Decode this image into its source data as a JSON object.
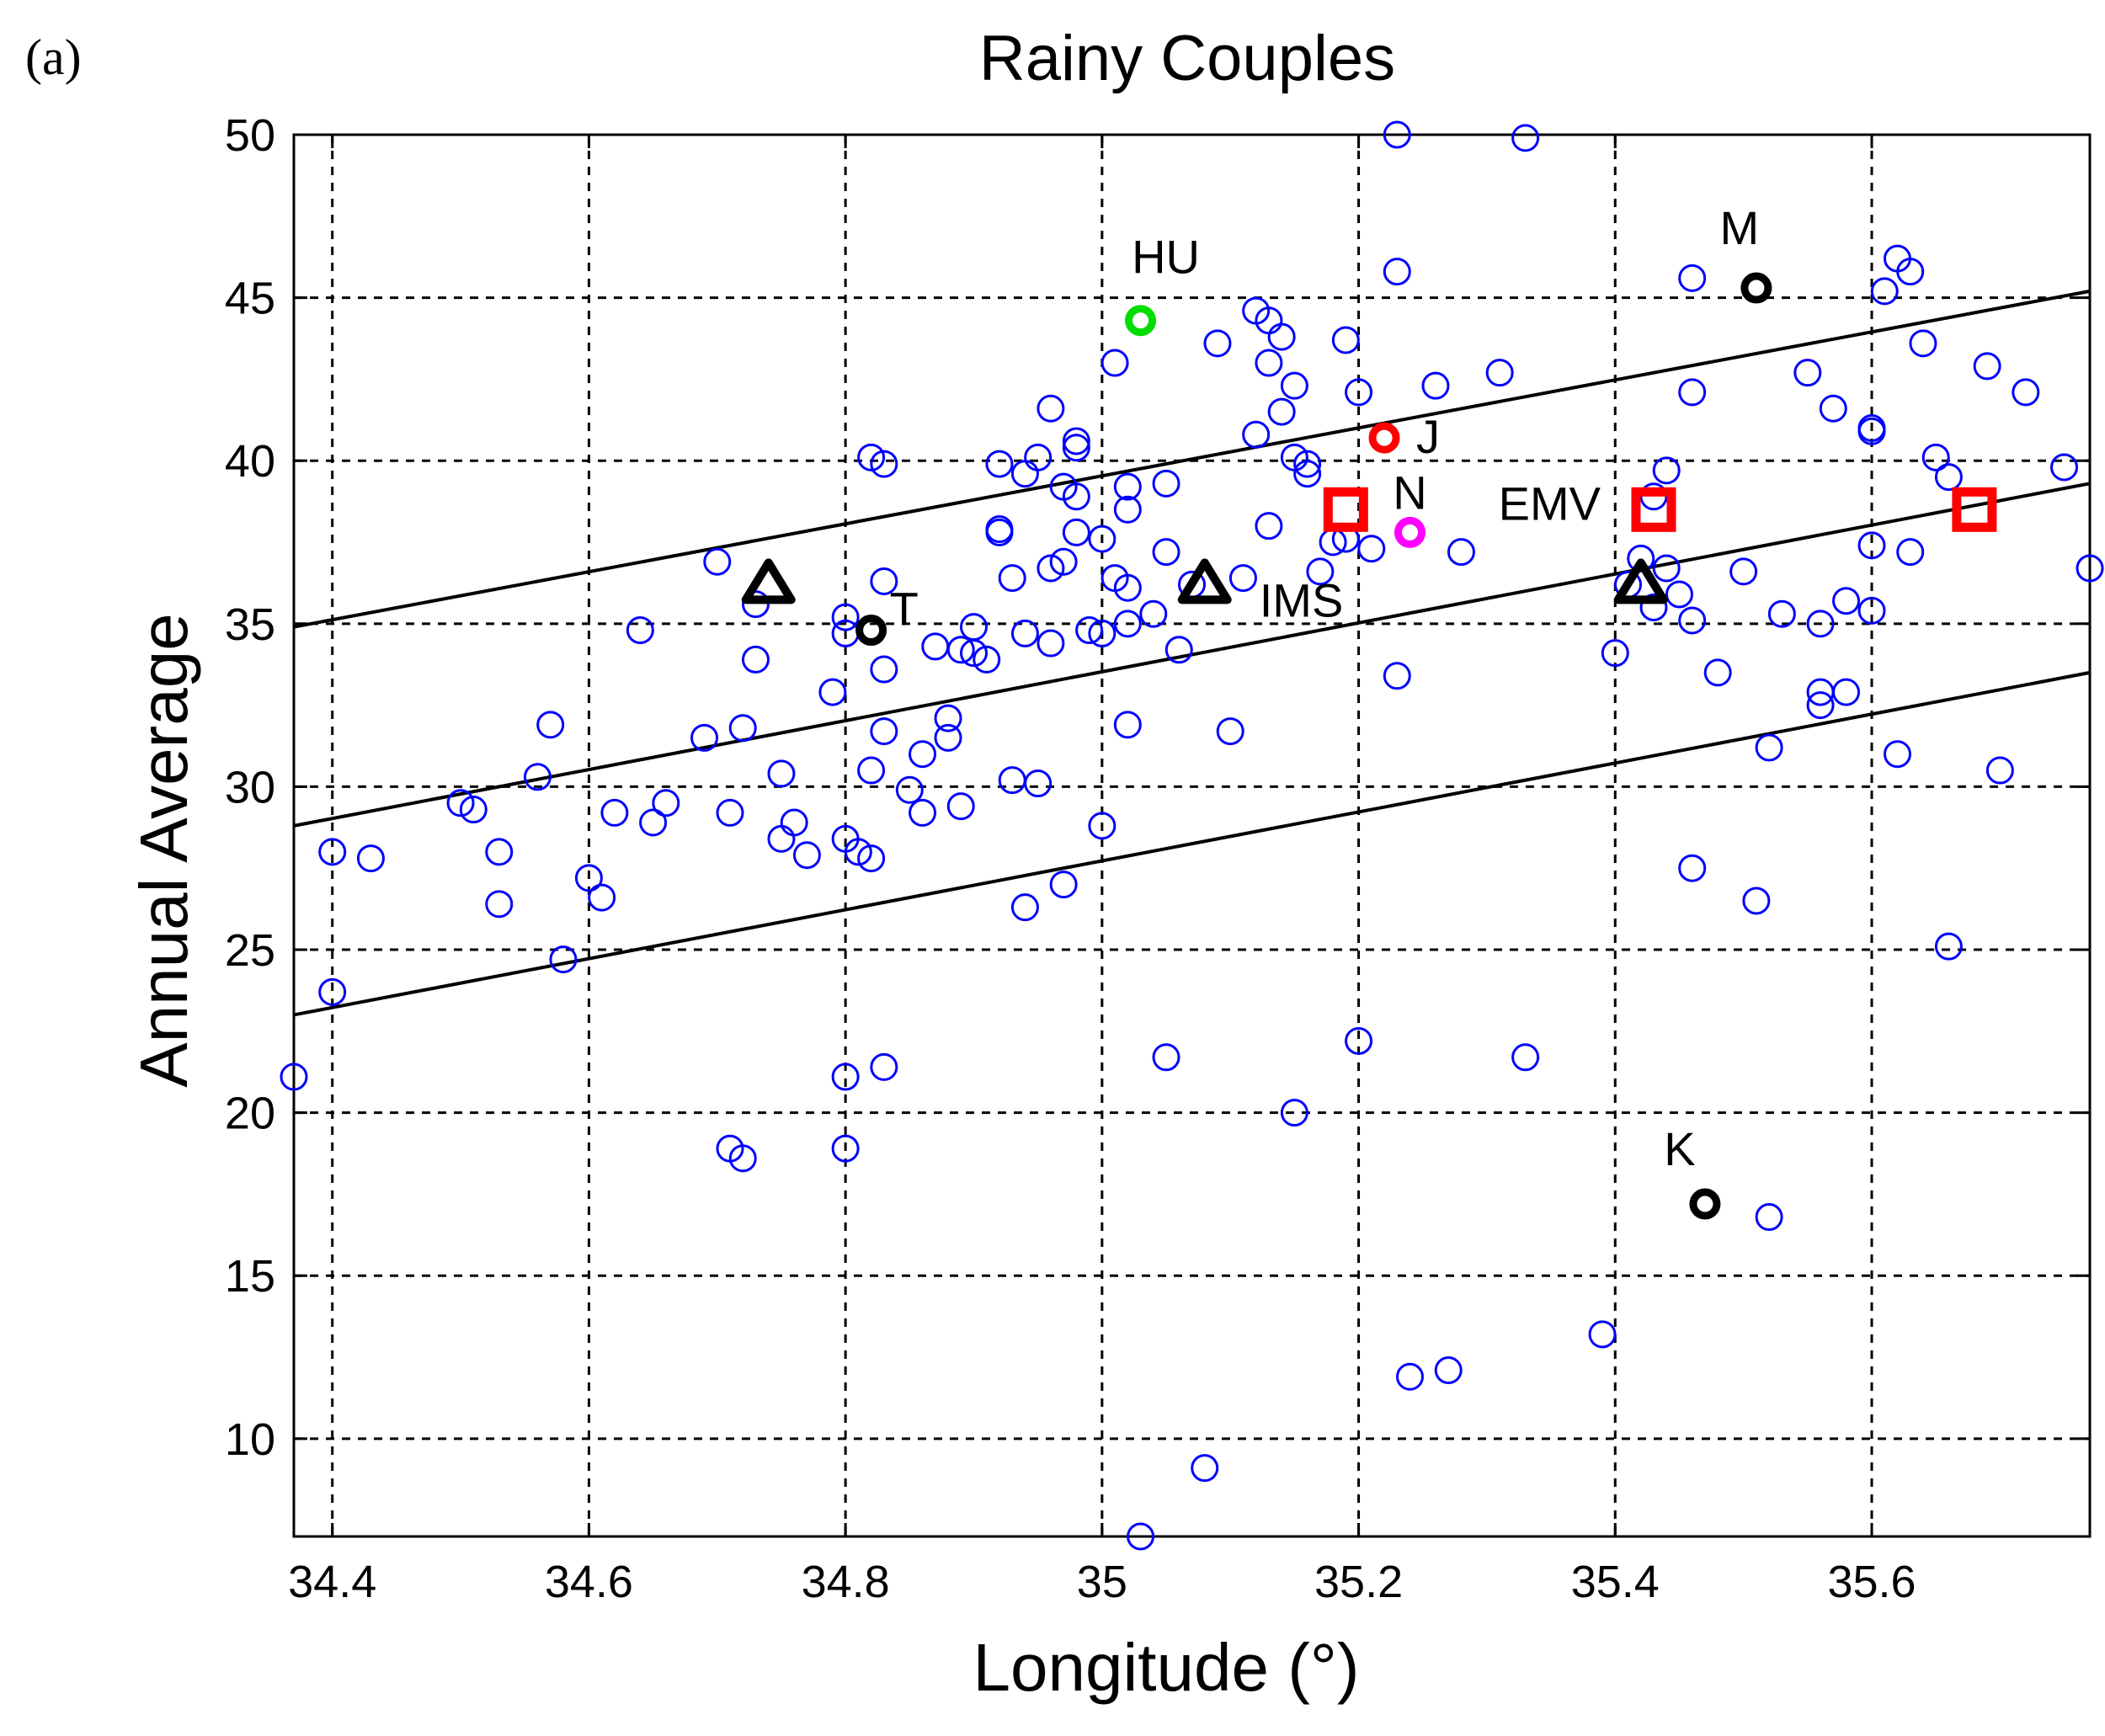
{
  "panel_label": "(a)",
  "chart_data": {
    "type": "scatter",
    "title": "Rainy Couples",
    "xlabel": "Longitude (°)",
    "ylabel": "Annual Average",
    "xlim": [
      34.37,
      35.77
    ],
    "ylim": [
      7,
      50
    ],
    "xticks": [
      34.4,
      34.6,
      34.8,
      35.0,
      35.2,
      35.4,
      35.6
    ],
    "xtick_labels": [
      "34.4",
      "34.6",
      "34.8",
      "35",
      "35.2",
      "35.4",
      "35.6"
    ],
    "yticks": [
      10,
      15,
      20,
      25,
      30,
      35,
      40,
      45,
      50
    ],
    "ytick_labels": [
      "10",
      "15",
      "20",
      "25",
      "30",
      "35",
      "40",
      "45",
      "50"
    ],
    "grid": true,
    "colors": {
      "stations": "#0000ff",
      "lines": "#000000",
      "square": "#ff0000",
      "J": "#ff0000",
      "N": "#ff00ff",
      "HU": "#00dd00",
      "dark": "#000000"
    },
    "stations": [
      [
        34.37,
        21.1
      ],
      [
        34.4,
        23.7
      ],
      [
        34.4,
        28.0
      ],
      [
        34.43,
        27.8
      ],
      [
        34.5,
        29.5
      ],
      [
        34.51,
        29.3
      ],
      [
        34.53,
        28.0
      ],
      [
        34.53,
        26.4
      ],
      [
        34.56,
        30.3
      ],
      [
        34.57,
        31.9
      ],
      [
        34.58,
        24.7
      ],
      [
        34.6,
        27.2
      ],
      [
        34.61,
        26.6
      ],
      [
        34.62,
        29.2
      ],
      [
        34.64,
        34.8
      ],
      [
        34.65,
        28.9
      ],
      [
        34.66,
        29.5
      ],
      [
        34.69,
        31.5
      ],
      [
        34.7,
        36.9
      ],
      [
        34.71,
        29.2
      ],
      [
        34.71,
        18.9
      ],
      [
        34.72,
        31.8
      ],
      [
        34.72,
        18.6
      ],
      [
        34.73,
        35.6
      ],
      [
        34.73,
        33.9
      ],
      [
        34.75,
        30.4
      ],
      [
        34.75,
        28.4
      ],
      [
        34.76,
        28.9
      ],
      [
        34.77,
        27.9
      ],
      [
        34.79,
        32.9
      ],
      [
        34.8,
        35.2
      ],
      [
        34.8,
        34.7
      ],
      [
        34.8,
        28.4
      ],
      [
        34.8,
        21.1
      ],
      [
        34.8,
        18.9
      ],
      [
        34.81,
        28.0
      ],
      [
        34.82,
        27.8
      ],
      [
        34.82,
        30.5
      ],
      [
        34.83,
        36.3
      ],
      [
        34.83,
        31.7
      ],
      [
        34.83,
        33.6
      ],
      [
        34.82,
        40.1
      ],
      [
        34.83,
        39.9
      ],
      [
        34.83,
        21.4
      ],
      [
        34.85,
        29.9
      ],
      [
        34.86,
        31.0
      ],
      [
        34.86,
        29.2
      ],
      [
        34.87,
        34.3
      ],
      [
        34.88,
        31.5
      ],
      [
        34.88,
        32.1
      ],
      [
        34.89,
        29.4
      ],
      [
        34.89,
        34.2
      ],
      [
        34.9,
        34.9
      ],
      [
        34.9,
        34.1
      ],
      [
        34.91,
        33.9
      ],
      [
        34.92,
        37.9
      ],
      [
        34.92,
        37.8
      ],
      [
        34.92,
        39.9
      ],
      [
        34.93,
        30.2
      ],
      [
        34.93,
        36.4
      ],
      [
        34.94,
        34.7
      ],
      [
        34.94,
        39.6
      ],
      [
        34.94,
        26.3
      ],
      [
        34.95,
        30.1
      ],
      [
        34.95,
        40.1
      ],
      [
        34.96,
        41.6
      ],
      [
        34.96,
        36.7
      ],
      [
        34.96,
        34.4
      ],
      [
        34.97,
        36.9
      ],
      [
        34.97,
        39.2
      ],
      [
        34.97,
        27.0
      ],
      [
        34.98,
        40.6
      ],
      [
        34.98,
        40.4
      ],
      [
        34.98,
        37.8
      ],
      [
        34.98,
        38.9
      ],
      [
        35.0,
        37.6
      ],
      [
        35.0,
        34.7
      ],
      [
        35.01,
        36.4
      ],
      [
        35.02,
        31.9
      ],
      [
        35.02,
        38.5
      ],
      [
        34.99,
        34.8
      ],
      [
        35.0,
        28.8
      ],
      [
        35.01,
        43.0
      ],
      [
        35.02,
        39.2
      ],
      [
        35.02,
        35.0
      ],
      [
        35.02,
        36.1
      ],
      [
        35.03,
        7.0
      ],
      [
        35.04,
        35.3
      ],
      [
        35.05,
        37.2
      ],
      [
        35.05,
        39.3
      ],
      [
        35.05,
        21.7
      ],
      [
        35.06,
        34.2
      ],
      [
        35.07,
        36.2
      ],
      [
        35.08,
        9.1
      ],
      [
        35.09,
        43.6
      ],
      [
        35.1,
        31.7
      ],
      [
        35.11,
        36.4
      ],
      [
        35.12,
        44.6
      ],
      [
        35.12,
        40.8
      ],
      [
        35.13,
        44.3
      ],
      [
        35.13,
        38.0
      ],
      [
        35.13,
        43.0
      ],
      [
        35.14,
        43.8
      ],
      [
        35.14,
        41.5
      ],
      [
        35.15,
        42.3
      ],
      [
        35.15,
        40.1
      ],
      [
        35.15,
        20.0
      ],
      [
        35.16,
        39.9
      ],
      [
        35.16,
        39.6
      ],
      [
        35.17,
        36.6
      ],
      [
        35.18,
        37.5
      ],
      [
        35.19,
        37.6
      ],
      [
        35.19,
        43.7
      ],
      [
        35.2,
        42.1
      ],
      [
        35.2,
        22.2
      ],
      [
        35.21,
        37.3
      ],
      [
        35.23,
        50.0
      ],
      [
        35.23,
        33.4
      ],
      [
        35.23,
        45.8
      ],
      [
        35.24,
        11.9
      ],
      [
        35.26,
        42.3
      ],
      [
        35.27,
        12.1
      ],
      [
        35.28,
        37.2
      ],
      [
        35.31,
        42.7
      ],
      [
        35.33,
        49.9
      ],
      [
        35.33,
        21.7
      ],
      [
        35.39,
        13.2
      ],
      [
        35.4,
        34.1
      ],
      [
        35.41,
        36.2
      ],
      [
        35.42,
        37.0
      ],
      [
        35.43,
        35.5
      ],
      [
        35.43,
        38.9
      ],
      [
        35.44,
        39.7
      ],
      [
        35.44,
        36.7
      ],
      [
        35.45,
        35.9
      ],
      [
        35.46,
        42.1
      ],
      [
        35.46,
        45.6
      ],
      [
        35.46,
        35.1
      ],
      [
        35.46,
        27.5
      ],
      [
        35.48,
        33.5
      ],
      [
        35.5,
        36.6
      ],
      [
        35.51,
        26.5
      ],
      [
        35.52,
        31.2
      ],
      [
        35.52,
        16.8
      ],
      [
        35.53,
        35.3
      ],
      [
        35.55,
        42.7
      ],
      [
        35.56,
        35.0
      ],
      [
        35.56,
        32.5
      ],
      [
        35.56,
        32.9
      ],
      [
        35.57,
        41.6
      ],
      [
        35.58,
        35.7
      ],
      [
        35.58,
        32.9
      ],
      [
        35.6,
        37.4
      ],
      [
        35.6,
        41.0
      ],
      [
        35.6,
        40.9
      ],
      [
        35.6,
        35.4
      ],
      [
        35.61,
        45.2
      ],
      [
        35.62,
        46.2
      ],
      [
        35.62,
        31.0
      ],
      [
        35.63,
        37.2
      ],
      [
        35.63,
        45.8
      ],
      [
        35.64,
        43.6
      ],
      [
        35.65,
        40.1
      ],
      [
        35.66,
        39.5
      ],
      [
        35.66,
        25.1
      ],
      [
        35.69,
        42.9
      ],
      [
        35.7,
        30.5
      ],
      [
        35.72,
        42.1
      ],
      [
        35.75,
        39.8
      ],
      [
        35.77,
        36.7
      ]
    ],
    "regression_lines": [
      {
        "x": [
          34.37,
          35.77
        ],
        "y": [
          34.9,
          45.2
        ]
      },
      {
        "x": [
          34.37,
          35.77
        ],
        "y": [
          28.8,
          39.3
        ]
      },
      {
        "x": [
          34.37,
          35.77
        ],
        "y": [
          23.0,
          33.5
        ]
      }
    ],
    "special_markers": [
      {
        "label": "HU",
        "x": 35.03,
        "y": 44.3,
        "marker": "circle",
        "color": "#00dd00"
      },
      {
        "label": "M",
        "x": 35.51,
        "y": 45.3,
        "marker": "circle",
        "color": "#000000"
      },
      {
        "label": "J",
        "x": 35.22,
        "y": 40.7,
        "marker": "circle",
        "color": "#ff0000"
      },
      {
        "label": "N",
        "x": 35.24,
        "y": 37.8,
        "marker": "circle",
        "color": "#ff00ff"
      },
      {
        "label": "T",
        "x": 34.82,
        "y": 34.8,
        "marker": "circle",
        "color": "#000000"
      },
      {
        "label": "K",
        "x": 35.47,
        "y": 17.2,
        "marker": "circle",
        "color": "#000000"
      },
      {
        "label": "IMS",
        "x": 35.08,
        "y": 36.2,
        "marker": "triangle",
        "color": "#000000"
      },
      {
        "label": "",
        "x": 34.74,
        "y": 36.2,
        "marker": "triangle",
        "color": "#000000"
      },
      {
        "label": "",
        "x": 35.42,
        "y": 36.2,
        "marker": "triangle",
        "color": "#000000"
      },
      {
        "label": "EMV",
        "x": 35.43,
        "y": 38.5,
        "marker": "square",
        "color": "#ff0000"
      },
      {
        "label": "",
        "x": 35.19,
        "y": 38.5,
        "marker": "square",
        "color": "#ff0000"
      },
      {
        "label": "",
        "x": 35.68,
        "y": 38.5,
        "marker": "square",
        "color": "#ff0000"
      }
    ]
  }
}
